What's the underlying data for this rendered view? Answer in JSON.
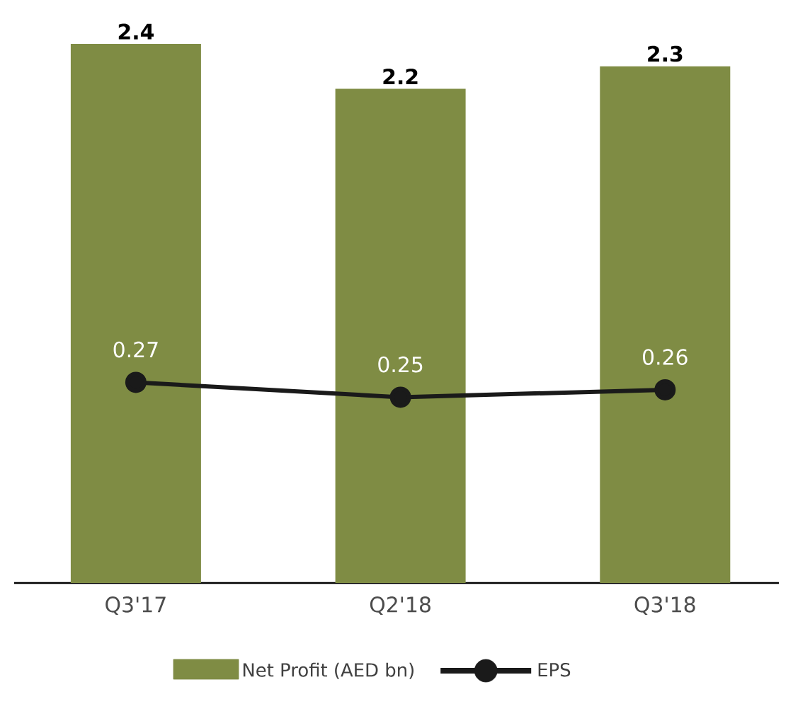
{
  "chart_data": {
    "type": "bar",
    "categories": [
      "Q3'17",
      "Q2'18",
      "Q3'18"
    ],
    "series": [
      {
        "name": "Net Profit (AED bn)",
        "color": "#7f8c44",
        "values": [
          2.4,
          2.2,
          2.3
        ]
      },
      {
        "name": "EPS",
        "type": "line",
        "axis": "y2",
        "color": "#1a1a1a",
        "marker": "circle",
        "values": [
          0.27,
          0.25,
          0.26
        ]
      }
    ],
    "data_labels": true,
    "legend": "bottom",
    "tick_labels": "x"
  }
}
